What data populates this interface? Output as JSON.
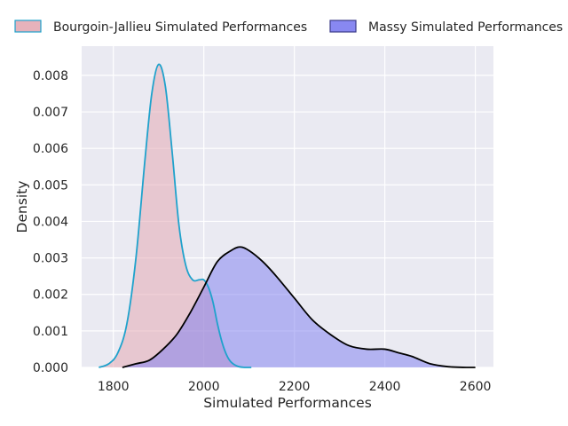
{
  "chart_data": {
    "type": "area",
    "xlabel": "Simulated Performances",
    "ylabel": "Density",
    "xlim": [
      1730,
      2640
    ],
    "ylim": [
      0,
      0.0088
    ],
    "x_ticks": [
      1800,
      2000,
      2200,
      2400,
      2600
    ],
    "x_tick_labels": [
      "1800",
      "2000",
      "2200",
      "2400",
      "2600"
    ],
    "y_ticks": [
      0,
      0.001,
      0.002,
      0.003,
      0.004,
      0.005,
      0.006,
      0.007,
      0.008
    ],
    "y_tick_labels": [
      "0.000",
      "0.001",
      "0.002",
      "0.003",
      "0.004",
      "0.005",
      "0.006",
      "0.007",
      "0.008"
    ],
    "grid": true,
    "legend_position": "top",
    "series": [
      {
        "name": "Bourgoin-Jallieu Simulated Performances",
        "fill_color": "#e3aab4",
        "line_color": "#1fa2cc",
        "x": [
          1768,
          1790,
          1810,
          1830,
          1850,
          1870,
          1885,
          1900,
          1915,
          1930,
          1945,
          1960,
          1975,
          1990,
          2000,
          2010,
          2020,
          2030,
          2040,
          2050,
          2060,
          2075,
          2090,
          2105
        ],
        "y": [
          0,
          0.0001,
          0.0004,
          0.0012,
          0.003,
          0.0057,
          0.0075,
          0.0083,
          0.0077,
          0.0059,
          0.0039,
          0.0028,
          0.0024,
          0.0024,
          0.0024,
          0.0022,
          0.0018,
          0.0012,
          0.0007,
          0.00035,
          0.00015,
          3e-05,
          0,
          0
        ]
      },
      {
        "name": "Massy Simulated Performances",
        "fill_color": "#7b7bf0",
        "line_color": "#000000",
        "x": [
          1820,
          1850,
          1880,
          1910,
          1940,
          1970,
          2000,
          2030,
          2060,
          2080,
          2100,
          2130,
          2160,
          2200,
          2240,
          2280,
          2320,
          2360,
          2400,
          2430,
          2460,
          2500,
          2540,
          2580,
          2600
        ],
        "y": [
          0,
          0.0001,
          0.0002,
          0.0005,
          0.0009,
          0.0015,
          0.0022,
          0.0029,
          0.0032,
          0.0033,
          0.0032,
          0.0029,
          0.0025,
          0.0019,
          0.0013,
          0.0009,
          0.0006,
          0.0005,
          0.0005,
          0.0004,
          0.0003,
          0.0001,
          2e-05,
          0,
          0
        ]
      }
    ]
  }
}
